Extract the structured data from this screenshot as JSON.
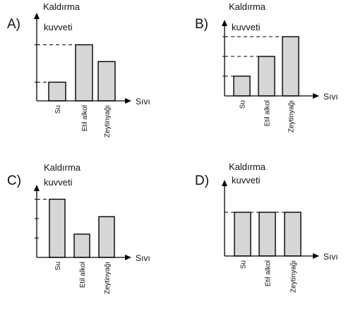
{
  "chart_data": [
    {
      "type": "bar",
      "option": "A)",
      "ylabel_line1": "Kaldırma",
      "ylabel_line2": "kuvveti",
      "xlabel": "Sıvı",
      "categories": [
        "Su",
        "Etil alkol",
        "Zeytinyağı"
      ],
      "values": [
        1,
        3,
        2.1
      ],
      "ylim": [
        0,
        3.4
      ],
      "levels": [
        1,
        3
      ],
      "tick_values": [
        1,
        3
      ]
    },
    {
      "type": "bar",
      "option": "B)",
      "ylabel_line1": "Kaldırma",
      "ylabel_line2": "kuvveti",
      "xlabel": "Sıvı",
      "categories": [
        "Su",
        "Etil alkol",
        "Zeytinyağı"
      ],
      "values": [
        1,
        2,
        3
      ],
      "ylim": [
        0,
        3.4
      ],
      "levels": [
        1,
        2,
        3
      ],
      "tick_values": [
        1,
        2,
        3
      ]
    },
    {
      "type": "bar",
      "option": "C)",
      "ylabel_line1": "Kaldırma",
      "ylabel_line2": "kuvveti",
      "xlabel": "Sıvı",
      "categories": [
        "Su",
        "Etil alkol",
        "Zeytinyağı"
      ],
      "values": [
        3,
        1.2,
        2.1
      ],
      "ylim": [
        0,
        3.4
      ],
      "levels": [
        3
      ],
      "tick_values": [
        1,
        2,
        3
      ]
    },
    {
      "type": "bar",
      "option": "D)",
      "ylabel_line1": "Kaldırma",
      "ylabel_line2": "kuvveti",
      "xlabel": "Sıvı",
      "categories": [
        "Su",
        "Etil alkol",
        "Zeytinyağı"
      ],
      "values": [
        2,
        2,
        2
      ],
      "ylim": [
        0,
        3.4
      ],
      "levels": [
        2
      ],
      "tick_values": []
    }
  ]
}
